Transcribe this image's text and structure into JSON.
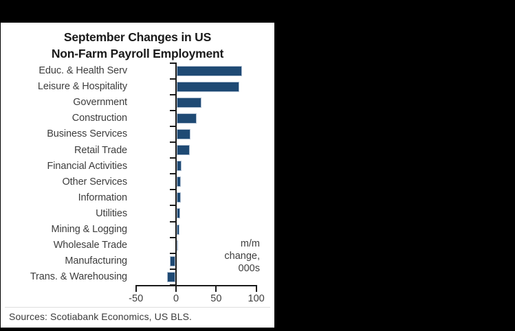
{
  "title": {
    "line1": "September Changes in US",
    "line2": "Non-Farm Payroll Employment"
  },
  "annotation": {
    "lines": [
      "m/m",
      "change,",
      "000s"
    ]
  },
  "source": "Sources: Scotiabank Economics, US BLS.",
  "colors": {
    "page_bg": "#000000",
    "panel_bg": "#ffffff",
    "bar_fill": "#1f4a74",
    "bar_border": "#b3c2d4",
    "axis": "#1a1a1a",
    "text": "#3d3d3d",
    "title_text": "#1a1a1a"
  },
  "chart_data": {
    "type": "bar",
    "orientation": "horizontal",
    "title": "September Changes in US Non-Farm Payroll Employment",
    "categories": [
      "Educ. & Health Serv",
      "Leisure & Hospitality",
      "Government",
      "Construction",
      "Business Services",
      "Retail Trade",
      "Financial Activities",
      "Other Services",
      "Information",
      "Utilities",
      "Mining & Logging",
      "Wholesale Trade",
      "Manufacturing",
      "Trans. & Warehousing"
    ],
    "values": [
      81,
      78,
      31,
      25,
      17,
      16,
      6,
      5,
      5,
      4,
      3,
      1,
      -7,
      -10
    ],
    "value_annotation": "m/m change, 000s",
    "x_ticks": [
      -50,
      0,
      50,
      100
    ],
    "x_tick_labels": [
      "-50",
      "0",
      "50",
      "100"
    ],
    "xlim": [
      -50,
      100
    ],
    "grid": false,
    "legend": false,
    "source": "Sources: Scotiabank Economics, US BLS."
  }
}
